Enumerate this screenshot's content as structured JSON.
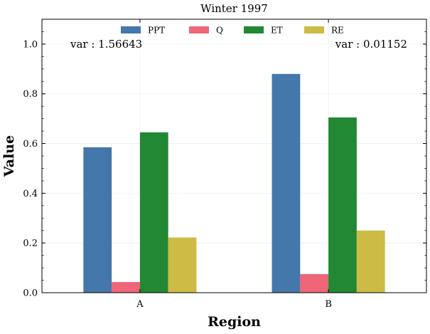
{
  "chart_data": {
    "type": "bar",
    "title": "Winter 1997",
    "xlabel": "Region",
    "ylabel": "Value",
    "categories": [
      "A",
      "B"
    ],
    "series": [
      {
        "name": "PPT",
        "values": [
          0.585,
          0.88
        ],
        "color": "#4477aa"
      },
      {
        "name": "Q",
        "values": [
          0.043,
          0.075
        ],
        "color": "#ee6677"
      },
      {
        "name": "ET",
        "values": [
          0.645,
          0.705
        ],
        "color": "#228833"
      },
      {
        "name": "RE",
        "values": [
          0.222,
          0.25
        ],
        "color": "#ccbb44"
      }
    ],
    "ylim": [
      0,
      1.1
    ],
    "yticks": [
      "0.0",
      "0.2",
      "0.4",
      "0.6",
      "0.8",
      "1.0"
    ],
    "grid": true,
    "legend_position": "top-center",
    "annotations": [
      {
        "text": "var : 1.56643",
        "position": "top-left"
      },
      {
        "text": "var : 0.01152",
        "position": "top-right"
      }
    ]
  }
}
